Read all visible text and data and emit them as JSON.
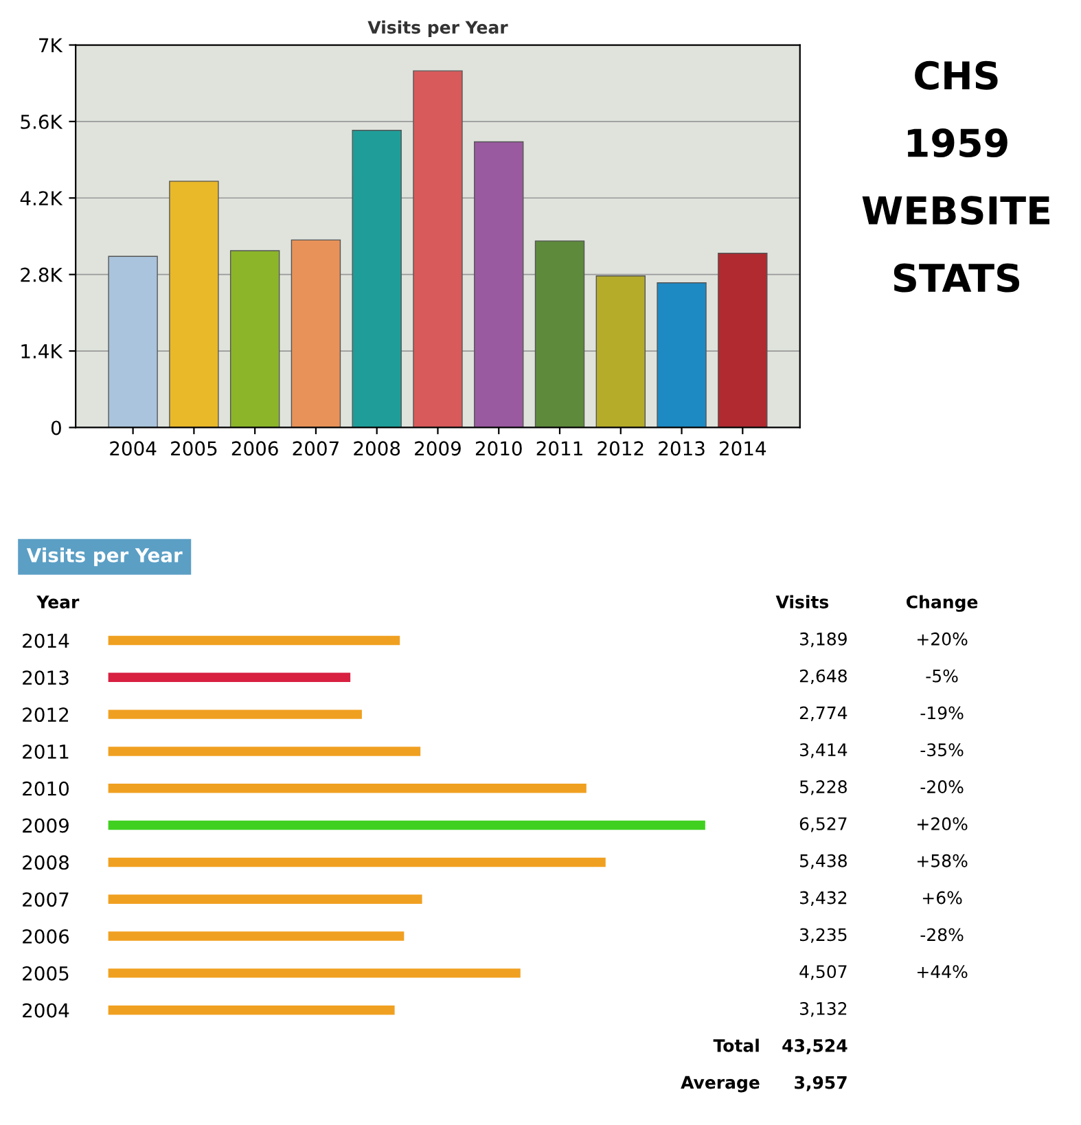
{
  "chart_data": [
    {
      "type": "bar",
      "title": "Visits per Year",
      "categories": [
        "2004",
        "2005",
        "2006",
        "2007",
        "2008",
        "2009",
        "2010",
        "2011",
        "2012",
        "2013",
        "2014"
      ],
      "values": [
        3132,
        4507,
        3235,
        3432,
        5438,
        6527,
        5228,
        3414,
        2774,
        2648,
        3189
      ],
      "colors": [
        "#a9c4dc",
        "#e9b92a",
        "#8cb52a",
        "#e8925a",
        "#1f9e99",
        "#d85a5a",
        "#9a5aa0",
        "#5e8a3c",
        "#b5ac2a",
        "#1e8ac4",
        "#b02a30"
      ],
      "ylim": [
        0,
        7000
      ],
      "yticks": [
        0,
        {
          "value": 1400,
          "label": "1.4K"
        },
        {
          "value": 2800,
          "label": "2.8K"
        },
        {
          "value": 4200,
          "label": "4.2K"
        },
        {
          "value": 5600,
          "label": "5.6K"
        },
        {
          "value": 7000,
          "label": "7K"
        }
      ],
      "grid": "y"
    },
    {
      "type": "other",
      "annotations": [
        "CHS",
        "1959",
        "WEBSITE",
        "STATS"
      ]
    },
    {
      "type": "bar",
      "orientation": "horizontal",
      "title": "Visits per Year",
      "categories": [
        "2014",
        "2013",
        "2012",
        "2011",
        "2010",
        "2009",
        "2008",
        "2007",
        "2006",
        "2005",
        "2004"
      ],
      "values": [
        3189,
        2648,
        2774,
        3414,
        5228,
        6527,
        5438,
        3432,
        3235,
        4507,
        3132
      ],
      "colors": [
        "#f0a020",
        "#d82040",
        "#f0a020",
        "#f0a020",
        "#f0a020",
        "#40d020",
        "#f0a020",
        "#f0a020",
        "#f0a020",
        "#f0a020",
        "#f0a020"
      ],
      "value_labels": [
        "3,189",
        "2,648",
        "2,774",
        "3,414",
        "5,228",
        "6,527",
        "5,438",
        "3,432",
        "3,235",
        "4,507",
        "3,132"
      ],
      "tick_labels": "y",
      "annotations": [
        "Year",
        "Visits",
        "Change",
        "Total",
        "43,524",
        "Average",
        "3,957",
        "+20%",
        "-5%",
        "-19%",
        "-35%",
        "-20%",
        "+20%",
        "+58%",
        "+6%",
        "-28%",
        "+44%"
      ]
    }
  ]
}
